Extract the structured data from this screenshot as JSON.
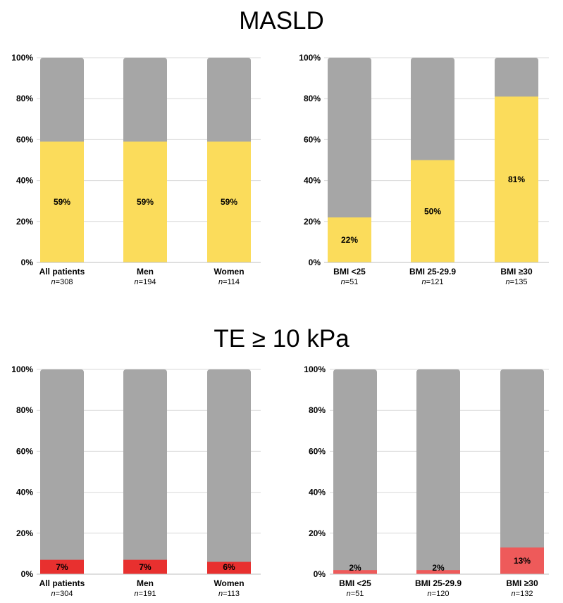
{
  "sections": [
    {
      "title": "MASLD"
    },
    {
      "title": "TE ≥ 10 kPa"
    }
  ],
  "colors": {
    "remainder": "#a6a6a6",
    "masld": "#fbdc5b",
    "te": "#e8302f",
    "te_alt": "#ee5a5a"
  },
  "chart_data": [
    {
      "type": "bar",
      "stacked_to_100": true,
      "section": "MASLD",
      "categories": [
        "All patients",
        "Men",
        "Women"
      ],
      "n_labels": [
        "n=308",
        "n=194",
        "n=114"
      ],
      "values": [
        59,
        59,
        59
      ],
      "data_labels": [
        "59%",
        "59%",
        "59%"
      ],
      "ylim": [
        0,
        100
      ],
      "yticks": [
        "0%",
        "20%",
        "40%",
        "60%",
        "80%",
        "100%"
      ],
      "grid": true
    },
    {
      "type": "bar",
      "stacked_to_100": true,
      "section": "MASLD",
      "categories": [
        "BMI <25",
        "BMI 25-29.9",
        "BMI ≥30"
      ],
      "n_labels": [
        "n=51",
        "n=121",
        "n=135"
      ],
      "values": [
        22,
        50,
        81
      ],
      "data_labels": [
        "22%",
        "50%",
        "81%"
      ],
      "ylim": [
        0,
        100
      ],
      "yticks": [
        "0%",
        "20%",
        "40%",
        "60%",
        "80%",
        "100%"
      ],
      "grid": true
    },
    {
      "type": "bar",
      "stacked_to_100": true,
      "section": "TE ≥ 10 kPa",
      "categories": [
        "All patients",
        "Men",
        "Women"
      ],
      "n_labels": [
        "n=304",
        "n=191",
        "n=113"
      ],
      "values": [
        7,
        7,
        6
      ],
      "data_labels": [
        "7%",
        "7%",
        "6%"
      ],
      "ylim": [
        0,
        100
      ],
      "yticks": [
        "0%",
        "20%",
        "40%",
        "60%",
        "80%",
        "100%"
      ],
      "grid": true
    },
    {
      "type": "bar",
      "stacked_to_100": true,
      "section": "TE ≥ 10 kPa",
      "categories": [
        "BMI <25",
        "BMI 25-29.9",
        "BMI ≥30"
      ],
      "n_labels": [
        "n=51",
        "n=120",
        "n=132"
      ],
      "values": [
        2,
        2,
        13
      ],
      "data_labels": [
        "2%",
        "2%",
        "13%"
      ],
      "ylim": [
        0,
        100
      ],
      "yticks": [
        "0%",
        "20%",
        "40%",
        "60%",
        "80%",
        "100%"
      ],
      "grid": true
    }
  ]
}
